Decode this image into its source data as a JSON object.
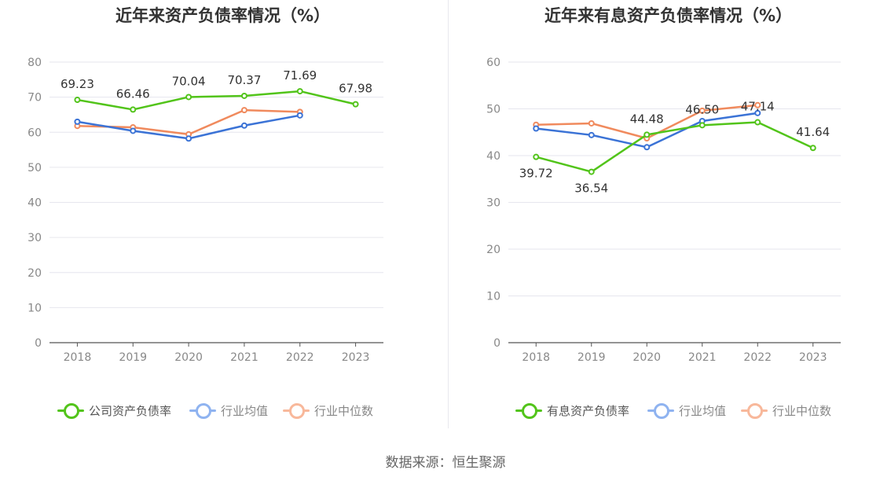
{
  "source": "数据来源：恒生聚源",
  "colors": {
    "company": "#52c41a",
    "average": "#3b73d6",
    "median": "#f08a5d",
    "legend_average": "#8fb3f0",
    "legend_median": "#f8b89b"
  },
  "chart_data": [
    {
      "type": "line",
      "title": "近年来资产负债率情况（%）",
      "categories": [
        "2018",
        "2019",
        "2020",
        "2021",
        "2022",
        "2023"
      ],
      "ylim": [
        0,
        80
      ],
      "yticks": [
        "0",
        "10",
        "20",
        "30",
        "40",
        "50",
        "60",
        "70",
        "80"
      ],
      "grid": true,
      "legend_position": "bottom",
      "series": [
        {
          "name": "公司资产负债率",
          "color_key": "company",
          "values": [
            69.23,
            66.46,
            70.04,
            70.37,
            71.69,
            67.98
          ],
          "labels": [
            "69.23",
            "66.46",
            "70.04",
            "70.37",
            "71.69",
            "67.98"
          ]
        },
        {
          "name": "行业均值",
          "color_key": "average",
          "values": [
            63.0,
            60.4,
            58.2,
            61.9,
            64.8,
            null
          ]
        },
        {
          "name": "行业中位数",
          "color_key": "median",
          "values": [
            61.8,
            61.4,
            59.4,
            66.3,
            65.8,
            null
          ]
        }
      ]
    },
    {
      "type": "line",
      "title": "近年来有息资产负债率情况（%）",
      "categories": [
        "2018",
        "2019",
        "2020",
        "2021",
        "2022",
        "2023"
      ],
      "ylim": [
        0,
        60
      ],
      "yticks": [
        "0",
        "10",
        "20",
        "30",
        "40",
        "50",
        "60"
      ],
      "grid": true,
      "legend_position": "bottom",
      "series": [
        {
          "name": "有息资产负债率",
          "color_key": "company",
          "values": [
            39.72,
            36.54,
            44.48,
            46.5,
            47.14,
            41.64
          ],
          "labels": [
            "39.72",
            "36.54",
            "44.48",
            "46.50",
            "47.14",
            "41.64"
          ]
        },
        {
          "name": "行业均值",
          "color_key": "average",
          "values": [
            45.8,
            44.4,
            41.8,
            47.4,
            49.1,
            null
          ]
        },
        {
          "name": "行业中位数",
          "color_key": "median",
          "values": [
            46.6,
            46.9,
            43.7,
            49.6,
            50.8,
            null
          ]
        }
      ]
    }
  ]
}
